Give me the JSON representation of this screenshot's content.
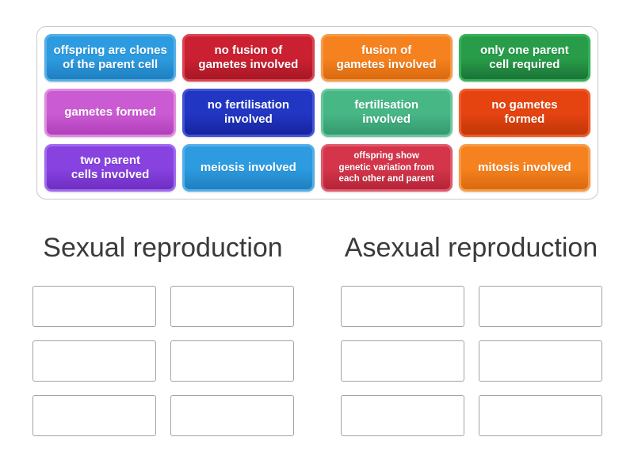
{
  "game": {
    "type_label": "group-sort",
    "background_color": "#ffffff"
  },
  "tile_bank": {
    "tiles": [
      {
        "id": "offspring-clones",
        "label": "offspring are clones\nof the parent cell",
        "color": "#2D9BE0",
        "color_light": "#54AEE8",
        "color_dark": "#1F7FC0"
      },
      {
        "id": "no-fusion",
        "label": "no fusion of\ngametes involved",
        "color": "#CB2032",
        "color_light": "#DC4250",
        "color_dark": "#A81825"
      },
      {
        "id": "fusion",
        "label": "fusion of\ngametes involved",
        "color": "#F5821F",
        "color_light": "#F79B47",
        "color_dark": "#D96A0E"
      },
      {
        "id": "one-parent",
        "label": "only one parent\ncell required",
        "color": "#289C49",
        "color_light": "#35B257",
        "color_dark": "#1A7437"
      },
      {
        "id": "gametes-formed",
        "label": "gametes formed",
        "color": "#CB5BD2",
        "color_light": "#DE8ADE",
        "color_dark": "#B23FBC"
      },
      {
        "id": "no-fertilisation",
        "label": "no fertilisation\ninvolved",
        "color": "#2236C4",
        "color_light": "#4153D6",
        "color_dark": "#16249E"
      },
      {
        "id": "fertilisation",
        "label": "fertilisation\ninvolved",
        "color": "#47B786",
        "color_light": "#68C79E",
        "color_dark": "#359970"
      },
      {
        "id": "no-gametes",
        "label": "no gametes\nformed",
        "color": "#E54310",
        "color_light": "#F05B2A",
        "color_dark": "#C2370A"
      },
      {
        "id": "two-parents",
        "label": "two parent\ncells involved",
        "color": "#8742E0",
        "color_light": "#9F6AEE",
        "color_dark": "#6F2EC2"
      },
      {
        "id": "meiosis",
        "label": "meiosis involved",
        "color": "#2D9BE0",
        "color_light": "#54AEE8",
        "color_dark": "#1F7FC0"
      },
      {
        "id": "genetic-variation",
        "label": "offspring show\ngenetic variation from\neach other and parent",
        "color": "#D4354A",
        "color_light": "#E05A6C",
        "color_dark": "#B52438"
      },
      {
        "id": "mitosis",
        "label": "mitosis involved",
        "color": "#F5821F",
        "color_light": "#F79B47",
        "color_dark": "#D96A0E"
      }
    ]
  },
  "groups": [
    {
      "title": "Sexual reproduction",
      "empty_slot_count": 6
    },
    {
      "title": "Asexual reproduction",
      "empty_slot_count": 6
    }
  ]
}
